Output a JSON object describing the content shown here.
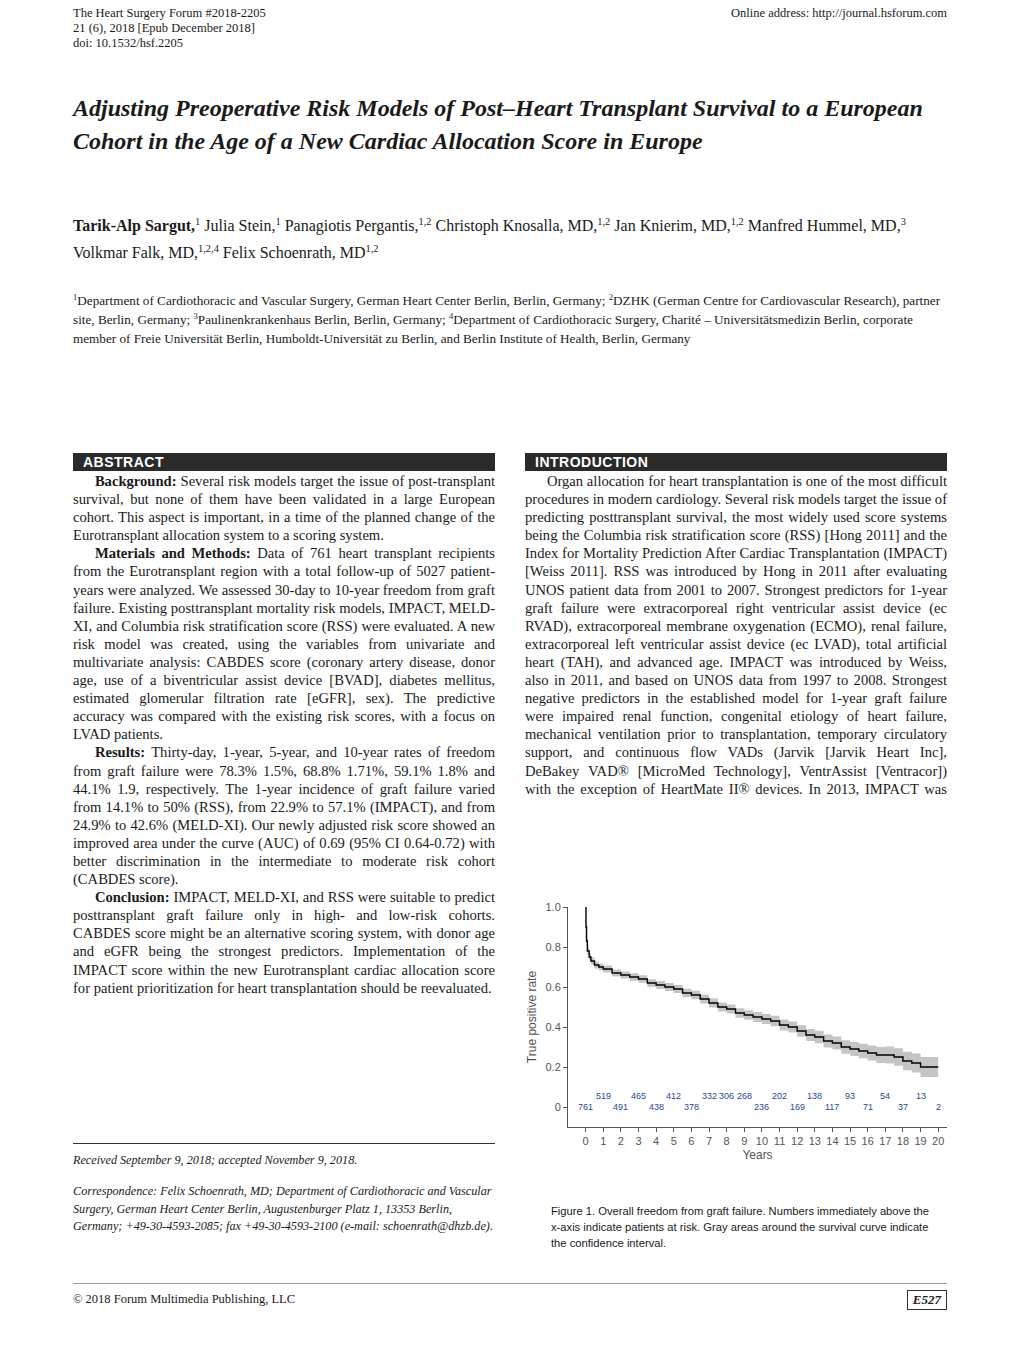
{
  "header": {
    "journal": "The Heart Surgery Forum #2018-2205",
    "issue": "21 (6), 2018 [Epub December 2018]",
    "doi": "doi: 10.1532/hsf.2205",
    "online": "Online address: http://journal.hsforum.com"
  },
  "title": "Adjusting Preoperative Risk Models of Post–Heart Transplant Survival to a European Cohort in the Age of a New Cardiac Allocation Score in Europe",
  "authors": [
    {
      "name": "Tarik-Alp Sargut,",
      "affil": "1"
    },
    {
      "name": "Julia Stein,",
      "affil": "1"
    },
    {
      "name": "Panagiotis Pergantis,",
      "affil": "1,2"
    },
    {
      "name": "Christoph Knosalla, MD,",
      "affil": "1,2"
    },
    {
      "name": "Jan Knierim, MD,",
      "affil": "1,2"
    },
    {
      "name": "Manfred Hummel, MD,",
      "affil": "3"
    },
    {
      "name": "Volkmar Falk, MD,",
      "affil": "1,2,4"
    },
    {
      "name": "Felix Schoenrath, MD",
      "affil": "1,2"
    }
  ],
  "affiliations": [
    {
      "num": "1",
      "text": "Department of Cardiothoracic and Vascular Surgery, German Heart Center Berlin, Berlin, Germany;"
    },
    {
      "num": "2",
      "text": "DZHK (German Centre for Cardiovascular Research), partner site, Berlin, Germany;"
    },
    {
      "num": "3",
      "text": "Paulinenkrankenhaus Berlin, Berlin, Germany;"
    },
    {
      "num": "4",
      "text": "Department of Cardiothoracic Surgery, Charité – Universitätsmedizin Berlin, corporate member of Freie Universität Berlin, Humboldt-Universität zu Berlin, and Berlin Institute of Health, Berlin, Germany"
    }
  ],
  "abstract": {
    "heading": "ABSTRACT",
    "paragraphs": [
      {
        "label": "Background:",
        "text": "Several risk models target the issue of post-transplant survival, but none of them have been validated in a large European cohort. This aspect is important, in a time of the planned change of the Eurotransplant allocation system to a scoring system."
      },
      {
        "label": "Materials and Methods:",
        "text": "Data of 761 heart transplant recipients from the Eurotransplant region with a total follow-up of 5027 patient-years were analyzed. We assessed 30-day to 10-year freedom from graft failure. Existing posttransplant mortality risk models, IMPACT, MELD-XI, and Columbia risk stratification score (RSS) were evaluated. A new risk model was created, using the variables from univariate and multivariate analysis: CABDES score (coronary artery disease, donor age, use of a biventricular assist device [BVAD], diabetes mellitus, estimated glomerular filtration rate [eGFR], sex). The predictive accuracy was compared with the existing risk scores, with a focus on LVAD patients."
      },
      {
        "label": "Results:",
        "text": "Thirty-day, 1-year, 5-year, and 10-year rates of freedom from graft failure were 78.3%    1.5%, 68.8%    1.71%, 59.1%    1.8% and 44.1%    1.9, respectively. The 1-year incidence of graft failure varied from 14.1% to 50% (RSS), from 22.9% to 57.1% (IMPACT), and from 24.9% to 42.6% (MELD-XI). Our newly adjusted risk score showed an improved area under the curve (AUC) of 0.69 (95% CI 0.64-0.72) with better discrimination in the intermediate to moderate risk cohort (CABDES score)."
      },
      {
        "label": "Conclusion:",
        "text": "IMPACT, MELD-XI, and RSS were suitable to predict posttransplant graft failure only in high- and low-risk cohorts. CABDES score might be an alternative scoring system, with donor age and eGFR being the strongest predictors. Implementation of the IMPACT score within the new Eurotransplant cardiac allocation score for patient prioritization for heart transplantation should be reevaluated."
      }
    ]
  },
  "introduction": {
    "heading": "INTRODUCTION",
    "text": "Organ allocation for heart transplantation is one of the most difficult procedures in modern cardiology. Several risk models target the issue of predicting posttransplant survival, the most widely used score systems being the Columbia risk stratification score (RSS) [Hong 2011] and the Index for Mortality Prediction After Cardiac Transplantation (IMPACT) [Weiss 2011]. RSS was introduced by Hong in 2011 after evaluating UNOS patient data from 2001 to 2007. Strongest predictors for 1-year graft failure were extracorporeal right ventricular assist device (ec RVAD), extracorporeal membrane oxygenation (ECMO), renal failure, extracorporeal left ventricular assist device (ec LVAD), total artificial heart (TAH), and advanced age. IMPACT was introduced by Weiss, also in 2011, and based on UNOS data from 1997 to 2008. Strongest negative predictors in the established model for 1-year graft failure were impaired renal function, congenital etiology of heart failure, mechanical ventilation prior to transplantation, temporary circulatory support, and continuous flow VADs (Jarvik [Jarvik Heart Inc], DeBakey VAD® [MicroMed Technology], VentrAssist [Ventracor]) with the exception of HeartMate II® devices. In 2013, IMPACT was"
  },
  "figure_caption": "Figure 1. Overall freedom from graft failure. Numbers immediately above the x-axis indicate patients at risk. Gray areas around the survival curve indicate the confidence interval.",
  "received": "Received September 9, 2018; accepted November 9, 2018.",
  "correspondence": "Correspondence: Felix Schoenrath, MD; Department of Cardiothoracic and Vascular Surgery, German Heart Center Berlin, Augustenburger Platz 1, 13353 Berlin, Germany; +49-30-4593-2085; fax +49-30-4593-2100 (e-mail: schoenrath@dhzb.de).",
  "footer": {
    "copyright": "© 2018 Forum Multimedia Publishing, LLC",
    "page": "E527"
  },
  "chart_data": {
    "type": "line",
    "x_label": "Years",
    "y_label": "True positive rate",
    "x": [
      0,
      0.02,
      0.05,
      0.1,
      0.2,
      0.3,
      0.5,
      0.75,
      1,
      1.5,
      2,
      2.5,
      3,
      3.5,
      4,
      4.5,
      5,
      5.5,
      6,
      6.5,
      7,
      7.5,
      8,
      8.5,
      9,
      9.5,
      10,
      10.5,
      11,
      11.5,
      12,
      12.5,
      13,
      13.5,
      14,
      14.5,
      15,
      15.5,
      16,
      16.5,
      17,
      17.5,
      18,
      18.5,
      19,
      19.5,
      20
    ],
    "values": [
      1.0,
      0.9,
      0.83,
      0.78,
      0.75,
      0.73,
      0.71,
      0.7,
      0.69,
      0.67,
      0.66,
      0.65,
      0.64,
      0.62,
      0.61,
      0.6,
      0.59,
      0.57,
      0.56,
      0.54,
      0.52,
      0.5,
      0.49,
      0.47,
      0.46,
      0.45,
      0.44,
      0.43,
      0.41,
      0.4,
      0.38,
      0.36,
      0.35,
      0.33,
      0.32,
      0.3,
      0.29,
      0.28,
      0.27,
      0.26,
      0.26,
      0.25,
      0.23,
      0.22,
      0.2,
      0.2,
      0.2
    ],
    "ci_lower": [
      1.0,
      0.883,
      0.813,
      0.763,
      0.733,
      0.713,
      0.693,
      0.683,
      0.673,
      0.652,
      0.642,
      0.631,
      0.621,
      0.601,
      0.59,
      0.58,
      0.57,
      0.549,
      0.539,
      0.518,
      0.498,
      0.477,
      0.467,
      0.446,
      0.436,
      0.425,
      0.415,
      0.404,
      0.383,
      0.372,
      0.351,
      0.33,
      0.319,
      0.298,
      0.287,
      0.266,
      0.255,
      0.244,
      0.232,
      0.22,
      0.218,
      0.206,
      0.184,
      0.172,
      0.15,
      0.15,
      0.15
    ],
    "ci_upper": [
      1.0,
      0.917,
      0.847,
      0.797,
      0.767,
      0.747,
      0.727,
      0.717,
      0.707,
      0.688,
      0.678,
      0.669,
      0.659,
      0.639,
      0.63,
      0.62,
      0.61,
      0.591,
      0.581,
      0.562,
      0.542,
      0.523,
      0.513,
      0.494,
      0.484,
      0.475,
      0.465,
      0.456,
      0.437,
      0.428,
      0.409,
      0.39,
      0.381,
      0.362,
      0.353,
      0.334,
      0.325,
      0.316,
      0.308,
      0.3,
      0.302,
      0.294,
      0.276,
      0.268,
      0.25,
      0.25,
      0.25
    ],
    "color": "#000000",
    "at_risk_upper": {
      "x": [
        1,
        3,
        5,
        7,
        8,
        9,
        11,
        13,
        15,
        17,
        19
      ],
      "values": [
        519,
        465,
        412,
        332,
        306,
        268,
        202,
        138,
        93,
        54,
        13
      ]
    },
    "at_risk_lower": {
      "x": [
        0,
        2,
        4,
        6,
        10,
        12,
        14,
        16,
        18,
        20
      ],
      "values": [
        761,
        491,
        438,
        378,
        236,
        169,
        117,
        71,
        37,
        2
      ]
    },
    "xlim": [
      -1,
      20.5
    ],
    "xticks": [
      0,
      1,
      2,
      3,
      4,
      5,
      6,
      7,
      8,
      9,
      10,
      11,
      12,
      13,
      14,
      15,
      16,
      17,
      18,
      19,
      20
    ],
    "ylim": [
      -0.1,
      1.0
    ],
    "yticks": [
      0,
      0.2,
      0.4,
      0.6,
      0.8,
      {
        "value": 1,
        "label": "1.0"
      }
    ],
    "grid": false
  }
}
